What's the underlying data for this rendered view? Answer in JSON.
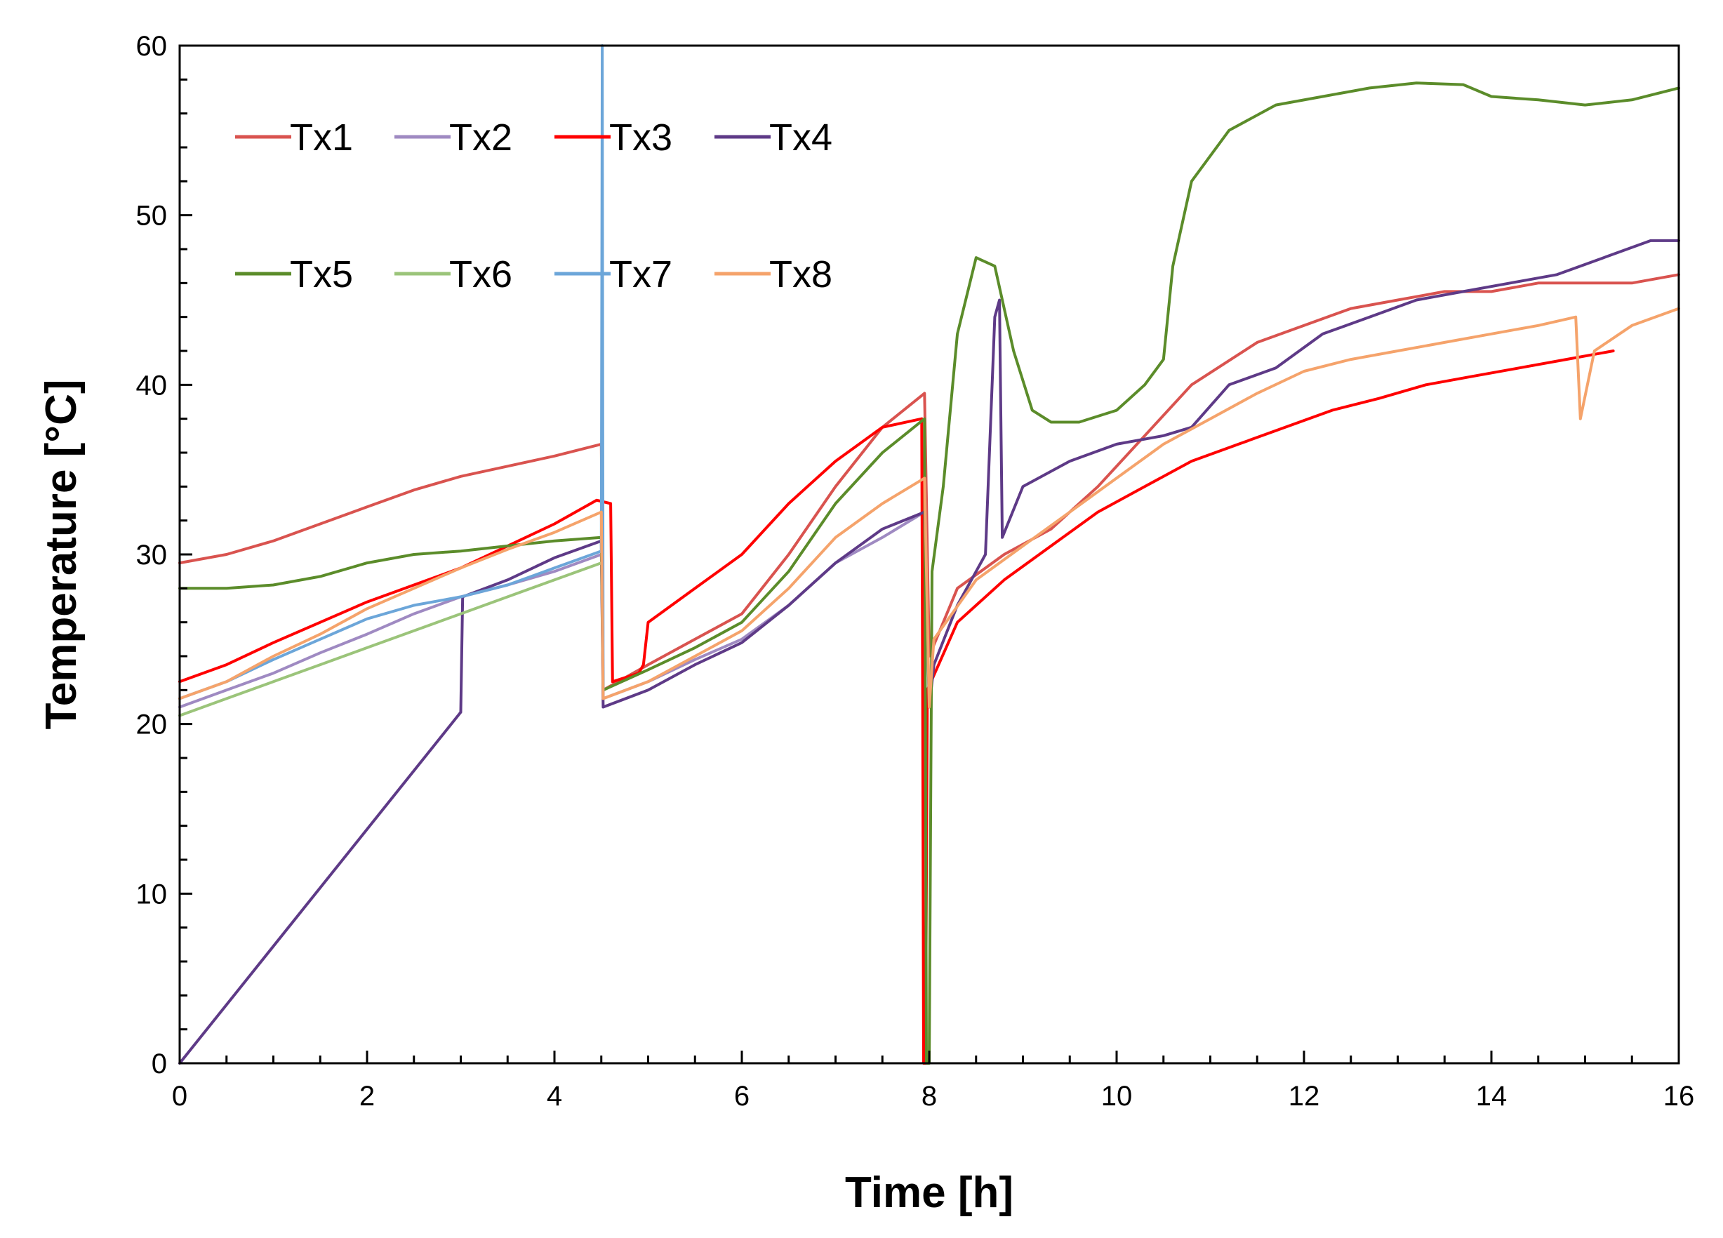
{
  "chart_data": {
    "type": "line",
    "title": "",
    "xlabel": "Time [h]",
    "ylabel": "Temperature [°C]",
    "xlim": [
      0,
      16
    ],
    "ylim": [
      0,
      60
    ],
    "xticks": [
      "0",
      "2",
      "4",
      "6",
      "8",
      "10",
      "12",
      "14",
      "16"
    ],
    "yticks": [
      "0",
      "10",
      "20",
      "30",
      "40",
      "50",
      "60"
    ],
    "grid": false,
    "legend_position": "top-left",
    "series": [
      {
        "name": "Tx1",
        "color": "#D9534F",
        "points": [
          [
            0,
            29.5
          ],
          [
            0.5,
            30
          ],
          [
            1,
            30.8
          ],
          [
            1.5,
            31.8
          ],
          [
            2,
            32.8
          ],
          [
            2.5,
            33.8
          ],
          [
            3,
            34.6
          ],
          [
            3.5,
            35.2
          ],
          [
            4,
            35.8
          ],
          [
            4.5,
            36.5
          ],
          [
            4.52,
            22
          ],
          [
            5,
            23.5
          ],
          [
            5.5,
            25
          ],
          [
            6,
            26.5
          ],
          [
            6.5,
            30
          ],
          [
            7,
            34
          ],
          [
            7.5,
            37.5
          ],
          [
            7.95,
            39.5
          ],
          [
            8.0,
            24
          ],
          [
            8.3,
            28
          ],
          [
            8.8,
            30
          ],
          [
            9.3,
            31.5
          ],
          [
            9.8,
            34
          ],
          [
            10.3,
            37
          ],
          [
            10.8,
            40
          ],
          [
            11.5,
            42.5
          ],
          [
            12,
            43.5
          ],
          [
            12.5,
            44.5
          ],
          [
            13,
            45
          ],
          [
            13.5,
            45.5
          ],
          [
            14,
            45.5
          ],
          [
            14.5,
            46
          ],
          [
            15,
            46
          ],
          [
            15.5,
            46
          ],
          [
            16,
            46.5
          ]
        ]
      },
      {
        "name": "Tx2",
        "color": "#9F8AC2",
        "points": [
          [
            0,
            21
          ],
          [
            0.5,
            22
          ],
          [
            1,
            23
          ],
          [
            1.5,
            24.2
          ],
          [
            2,
            25.3
          ],
          [
            2.5,
            26.5
          ],
          [
            3,
            27.5
          ],
          [
            3.5,
            28.2
          ],
          [
            4,
            29
          ],
          [
            4.5,
            30
          ],
          [
            4.52,
            21.5
          ],
          [
            5,
            22.5
          ],
          [
            5.5,
            23.8
          ],
          [
            6,
            25
          ],
          [
            6.5,
            27
          ],
          [
            7,
            29.5
          ],
          [
            7.5,
            31
          ],
          [
            7.95,
            32.5
          ]
        ]
      },
      {
        "name": "Tx3",
        "color": "#FF0000",
        "points": [
          [
            0,
            22.5
          ],
          [
            0.5,
            23.5
          ],
          [
            1,
            24.8
          ],
          [
            1.5,
            26
          ],
          [
            2,
            27.2
          ],
          [
            2.5,
            28.2
          ],
          [
            3,
            29.2
          ],
          [
            3.5,
            30.5
          ],
          [
            4,
            31.8
          ],
          [
            4.45,
            33.2
          ],
          [
            4.6,
            33
          ],
          [
            4.62,
            22.5
          ],
          [
            4.9,
            23
          ],
          [
            4.95,
            23.5
          ],
          [
            5.0,
            26
          ],
          [
            5.5,
            28
          ],
          [
            6,
            30
          ],
          [
            6.5,
            33
          ],
          [
            7,
            35.5
          ],
          [
            7.5,
            37.5
          ],
          [
            7.92,
            38
          ],
          [
            7.93,
            20.5
          ],
          [
            7.94,
            0
          ],
          [
            7.96,
            0
          ],
          [
            7.98,
            22
          ],
          [
            8.3,
            26
          ],
          [
            8.8,
            28.5
          ],
          [
            9.3,
            30.5
          ],
          [
            9.8,
            32.5
          ],
          [
            10.3,
            34
          ],
          [
            10.8,
            35.5
          ],
          [
            11.3,
            36.5
          ],
          [
            11.8,
            37.5
          ],
          [
            12.3,
            38.5
          ],
          [
            12.8,
            39.2
          ],
          [
            13.3,
            40
          ],
          [
            13.8,
            40.5
          ],
          [
            14.3,
            41
          ],
          [
            14.8,
            41.5
          ],
          [
            15.3,
            42
          ]
        ]
      },
      {
        "name": "Tx4",
        "color": "#5E3A87",
        "points": [
          [
            0,
            0
          ],
          [
            3,
            20.7
          ],
          [
            3.02,
            27.5
          ],
          [
            3.5,
            28.5
          ],
          [
            4,
            29.8
          ],
          [
            4.5,
            30.8
          ],
          [
            4.52,
            21
          ],
          [
            5,
            22
          ],
          [
            5.5,
            23.5
          ],
          [
            6,
            24.8
          ],
          [
            6.5,
            27
          ],
          [
            7,
            29.5
          ],
          [
            7.5,
            31.5
          ],
          [
            7.95,
            32.5
          ],
          [
            8.0,
            21
          ],
          [
            8.05,
            23.5
          ],
          [
            8.3,
            27
          ],
          [
            8.5,
            29
          ],
          [
            8.6,
            30
          ],
          [
            8.7,
            44
          ],
          [
            8.75,
            45
          ],
          [
            8.78,
            31
          ],
          [
            9,
            34
          ],
          [
            9.5,
            35.5
          ],
          [
            10,
            36.5
          ],
          [
            10.5,
            37
          ],
          [
            10.8,
            37.5
          ],
          [
            11.2,
            40
          ],
          [
            11.7,
            41
          ],
          [
            12.2,
            43
          ],
          [
            12.7,
            44
          ],
          [
            13.2,
            45
          ],
          [
            13.7,
            45.5
          ],
          [
            14.2,
            46
          ],
          [
            14.7,
            46.5
          ],
          [
            15.2,
            47.5
          ],
          [
            15.7,
            48.5
          ],
          [
            16,
            48.5
          ]
        ]
      },
      {
        "name": "Tx5",
        "color": "#5B8C2A",
        "points": [
          [
            0,
            28
          ],
          [
            0.5,
            28
          ],
          [
            1,
            28.2
          ],
          [
            1.5,
            28.7
          ],
          [
            2,
            29.5
          ],
          [
            2.5,
            30
          ],
          [
            3,
            30.2
          ],
          [
            3.5,
            30.5
          ],
          [
            4,
            30.8
          ],
          [
            4.5,
            31
          ],
          [
            4.52,
            22
          ],
          [
            5,
            23.2
          ],
          [
            5.5,
            24.5
          ],
          [
            6,
            26
          ],
          [
            6.5,
            29
          ],
          [
            7,
            33
          ],
          [
            7.5,
            36
          ],
          [
            7.95,
            38
          ],
          [
            7.97,
            0
          ],
          [
            8.0,
            0
          ],
          [
            8.03,
            29
          ],
          [
            8.15,
            34
          ],
          [
            8.3,
            43
          ],
          [
            8.5,
            47.5
          ],
          [
            8.7,
            47
          ],
          [
            8.9,
            42
          ],
          [
            9.1,
            38.5
          ],
          [
            9.3,
            37.8
          ],
          [
            9.6,
            37.8
          ],
          [
            10,
            38.5
          ],
          [
            10.3,
            40
          ],
          [
            10.5,
            41.5
          ],
          [
            10.6,
            47
          ],
          [
            10.8,
            52
          ],
          [
            11.2,
            55
          ],
          [
            11.7,
            56.5
          ],
          [
            12.2,
            57
          ],
          [
            12.7,
            57.5
          ],
          [
            13.2,
            57.8
          ],
          [
            13.7,
            57.7
          ],
          [
            14,
            57
          ],
          [
            14.5,
            56.8
          ],
          [
            15,
            56.5
          ],
          [
            15.5,
            56.8
          ],
          [
            16,
            57.5
          ]
        ]
      },
      {
        "name": "Tx6",
        "color": "#9BC47A",
        "points": [
          [
            0,
            20.5
          ],
          [
            0.5,
            21.5
          ],
          [
            1,
            22.5
          ],
          [
            1.5,
            23.5
          ],
          [
            2,
            24.5
          ],
          [
            2.5,
            25.5
          ],
          [
            3,
            26.5
          ],
          [
            3.5,
            27.5
          ],
          [
            4,
            28.5
          ],
          [
            4.5,
            29.5
          ]
        ]
      },
      {
        "name": "Tx7",
        "color": "#6CA6D9",
        "points": [
          [
            0,
            21.5
          ],
          [
            0.5,
            22.5
          ],
          [
            1,
            23.8
          ],
          [
            1.5,
            25
          ],
          [
            2,
            26.2
          ],
          [
            2.5,
            27
          ],
          [
            3,
            27.5
          ],
          [
            3.5,
            28.2
          ],
          [
            4,
            29.2
          ],
          [
            4.5,
            30.2
          ],
          [
            4.51,
            60
          ],
          [
            4.52,
            22
          ]
        ]
      },
      {
        "name": "Tx8",
        "color": "#F5A36B",
        "points": [
          [
            0,
            21.5
          ],
          [
            0.5,
            22.5
          ],
          [
            1,
            24
          ],
          [
            1.5,
            25.3
          ],
          [
            2,
            26.8
          ],
          [
            2.5,
            28
          ],
          [
            3,
            29.2
          ],
          [
            3.5,
            30.3
          ],
          [
            4,
            31.3
          ],
          [
            4.5,
            32.5
          ],
          [
            4.52,
            21.5
          ],
          [
            5,
            22.5
          ],
          [
            5.5,
            24
          ],
          [
            6,
            25.5
          ],
          [
            6.5,
            28
          ],
          [
            7,
            31
          ],
          [
            7.5,
            33
          ],
          [
            7.95,
            34.5
          ],
          [
            8.0,
            21
          ],
          [
            8.05,
            25
          ],
          [
            8.5,
            28.5
          ],
          [
            9,
            30.5
          ],
          [
            9.5,
            32.5
          ],
          [
            10,
            34.5
          ],
          [
            10.5,
            36.5
          ],
          [
            11,
            38
          ],
          [
            11.5,
            39.5
          ],
          [
            12,
            40.8
          ],
          [
            12.5,
            41.5
          ],
          [
            13,
            42
          ],
          [
            13.5,
            42.5
          ],
          [
            14,
            43
          ],
          [
            14.5,
            43.5
          ],
          [
            14.9,
            44
          ],
          [
            14.95,
            38
          ],
          [
            15.1,
            42
          ],
          [
            15.5,
            43.5
          ],
          [
            16,
            44.5
          ]
        ]
      }
    ]
  },
  "legend": {
    "row1": [
      "Tx1",
      "Tx2",
      "Tx3",
      "Tx4"
    ],
    "row2": [
      "Tx5",
      "Tx6",
      "Tx7",
      "Tx8"
    ]
  }
}
